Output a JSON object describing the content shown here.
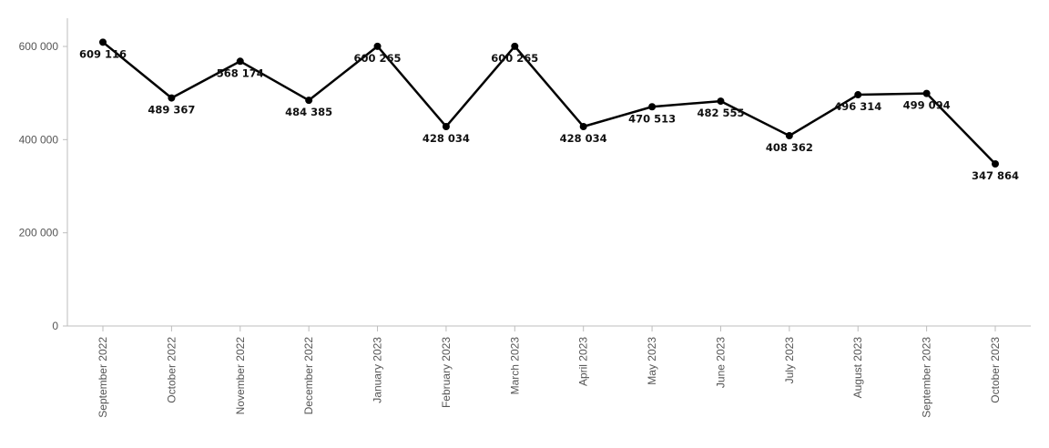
{
  "chart_data": {
    "type": "line",
    "title": "",
    "xlabel": "",
    "ylabel": "",
    "categories": [
      "September 2022",
      "October 2022",
      "November 2022",
      "December 2022",
      "January 2023",
      "February 2023",
      "March 2023",
      "April 2023",
      "May 2023",
      "June 2023",
      "July 2023",
      "August 2023",
      "September 2023",
      "October 2023"
    ],
    "series": [
      {
        "values": [
          609116,
          489367,
          568174,
          484385,
          600265,
          428034,
          600265,
          428034,
          470513,
          482555,
          408362,
          496314,
          499094,
          347864
        ],
        "labels": [
          "609 116",
          "489 367",
          "568 174",
          "484 385",
          "600 265",
          "428 034",
          "600 265",
          "428 034",
          "470 513",
          "482 555",
          "408 362",
          "496 314",
          "499 094",
          "347 864"
        ],
        "color": "#000000"
      }
    ],
    "ylim": [
      0,
      620000
    ],
    "yticks": [
      0,
      200000,
      400000,
      600000
    ],
    "ytick_labels": [
      "0",
      "200 000",
      "400 000",
      "600 000"
    ],
    "grid": false,
    "legend": "none"
  }
}
